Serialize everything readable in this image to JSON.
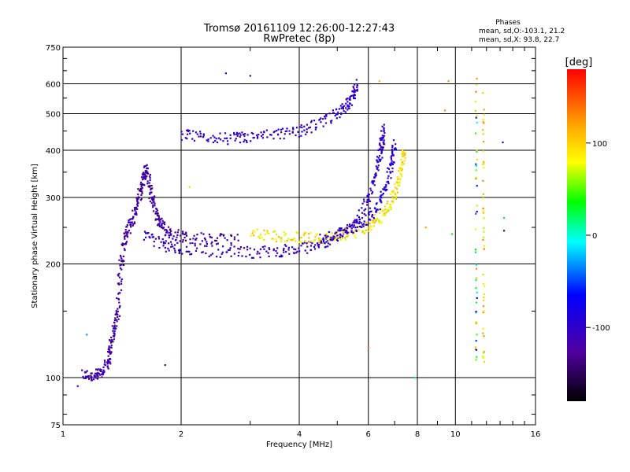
{
  "chart_data": {
    "type": "scatter",
    "title": "Tromsø 20161109 12:26:00-12:27:43",
    "subtitle": "RwPretec (8p)",
    "stats_title": "Phases",
    "stats_o": "mean, sd,O:-103.1, 21.2",
    "stats_x": "mean, sd,X:  93.8, 22.7",
    "xlabel": "Frequency [MHz]",
    "ylabel": "Stationary phase Virtual Height [km]",
    "xscale": "log",
    "yscale": "log",
    "xlim": [
      1,
      16
    ],
    "ylim": [
      75,
      750
    ],
    "x_ticks": [
      1,
      2,
      4,
      6,
      8,
      10,
      16
    ],
    "x_tick_labels": [
      "1",
      "2",
      "4",
      "6",
      "8",
      "10",
      "16"
    ],
    "y_ticks": [
      75,
      100,
      200,
      300,
      400,
      500,
      600,
      750
    ],
    "y_tick_labels": [
      "75",
      "100",
      "200",
      "300",
      "400",
      "500",
      "600",
      "750"
    ],
    "grid": true,
    "colorbar": {
      "label": "[deg]",
      "range": [
        -180,
        180
      ],
      "ticks": [
        100,
        0,
        -100
      ],
      "tick_labels": [
        "100",
        "0",
        "-100"
      ],
      "colors": [
        "#ff0000",
        "#ffb000",
        "#ffff00",
        "#00ff00",
        "#00ffff",
        "#0000ff",
        "#5000a0",
        "#000000"
      ]
    },
    "traces": [
      {
        "name": "",
        "phase": -120,
        "points": [
          [
            1.12,
            102
          ],
          [
            1.2,
            101
          ],
          [
            1.25,
            103
          ],
          [
            1.3,
            110
          ],
          [
            1.32,
            120
          ],
          [
            1.35,
            135
          ],
          [
            1.38,
            150
          ],
          [
            1.4,
            190
          ],
          [
            1.43,
            230
          ],
          [
            1.47,
            250
          ],
          [
            1.52,
            270
          ],
          [
            1.56,
            300
          ],
          [
            1.6,
            330
          ],
          [
            1.63,
            360
          ],
          [
            1.66,
            320
          ],
          [
            1.7,
            290
          ],
          [
            1.75,
            260
          ],
          [
            1.8,
            250
          ],
          [
            1.9,
            240
          ],
          [
            2.1,
            235
          ],
          [
            2.4,
            232
          ],
          [
            2.8,
            233
          ]
        ]
      },
      {
        "name": "",
        "phase": -105,
        "points": [
          [
            1.6,
            240
          ],
          [
            1.8,
            225
          ],
          [
            2.0,
            219
          ],
          [
            2.5,
            216
          ],
          [
            3.0,
            215
          ],
          [
            3.5,
            216
          ],
          [
            4.0,
            219
          ],
          [
            4.5,
            226
          ],
          [
            5.0,
            236
          ],
          [
            5.5,
            255
          ],
          [
            5.9,
            285
          ],
          [
            6.2,
            330
          ],
          [
            6.4,
            380
          ],
          [
            6.5,
            420
          ],
          [
            6.55,
            460
          ]
        ]
      },
      {
        "name": "",
        "phase": -100,
        "points": [
          [
            2.0,
            440
          ],
          [
            2.3,
            432
          ],
          [
            2.7,
            430
          ],
          [
            3.0,
            433
          ],
          [
            3.5,
            440
          ],
          [
            4.0,
            450
          ],
          [
            4.5,
            470
          ],
          [
            5.0,
            500
          ],
          [
            5.3,
            530
          ],
          [
            5.5,
            560
          ],
          [
            5.6,
            600
          ]
        ]
      },
      {
        "name": "",
        "phase": 90,
        "points": [
          [
            3.0,
            240
          ],
          [
            3.5,
            237
          ],
          [
            4.0,
            235
          ],
          [
            4.5,
            234
          ],
          [
            5.0,
            236
          ],
          [
            5.5,
            242
          ],
          [
            6.0,
            252
          ],
          [
            6.4,
            265
          ],
          [
            6.8,
            285
          ],
          [
            7.1,
            320
          ],
          [
            7.3,
            360
          ],
          [
            7.4,
            410
          ]
        ]
      },
      {
        "name": "",
        "phase": -95,
        "points": [
          [
            4.5,
            232
          ],
          [
            5.0,
            240
          ],
          [
            5.5,
            250
          ],
          [
            6.0,
            265
          ],
          [
            6.4,
            290
          ],
          [
            6.7,
            330
          ],
          [
            6.9,
            380
          ],
          [
            7.0,
            420
          ]
        ]
      }
    ],
    "vertical_columns": [
      {
        "freq": 11.3,
        "phase_range": [
          -110,
          140
        ],
        "y_range": [
          110,
          620
        ]
      },
      {
        "freq": 11.8,
        "phase_range": [
          60,
          140
        ],
        "y_range": [
          110,
          600
        ]
      }
    ],
    "isolated_points": [
      {
        "freq": 2.6,
        "height": 640,
        "phase": -100
      },
      {
        "freq": 3.0,
        "height": 630,
        "phase": -100
      },
      {
        "freq": 6.0,
        "height": 120,
        "phase": 140
      },
      {
        "freq": 6.4,
        "height": 610,
        "phase": 110
      },
      {
        "freq": 7.9,
        "height": 100,
        "phase": 20
      },
      {
        "freq": 8.4,
        "height": 250,
        "phase": 120
      },
      {
        "freq": 9.4,
        "height": 510,
        "phase": 130
      },
      {
        "freq": 9.6,
        "height": 610,
        "phase": 130
      },
      {
        "freq": 9.8,
        "height": 240,
        "phase": 40
      },
      {
        "freq": 13.2,
        "height": 420,
        "phase": -100
      },
      {
        "freq": 13.3,
        "height": 265,
        "phase": -20
      },
      {
        "freq": 13.3,
        "height": 245,
        "phase": -140
      },
      {
        "freq": 1.09,
        "height": 95,
        "phase": -120
      },
      {
        "freq": 1.15,
        "height": 130,
        "phase": -30
      },
      {
        "freq": 1.82,
        "height": 108,
        "phase": -130
      },
      {
        "freq": 2.1,
        "height": 320,
        "phase": 100
      }
    ]
  }
}
